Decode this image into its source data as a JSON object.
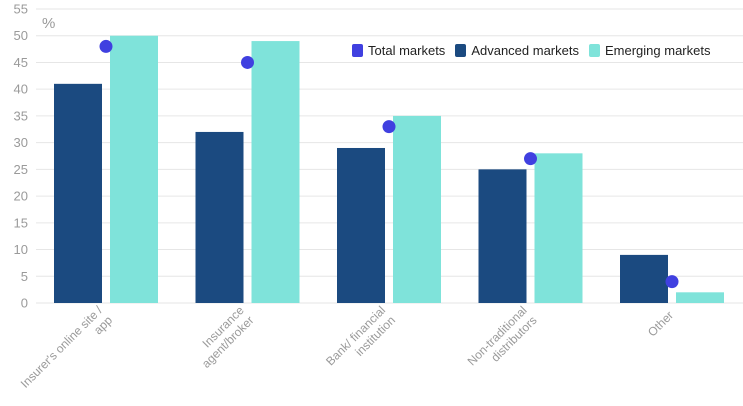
{
  "chart_data": {
    "type": "bar",
    "unit_label": "%",
    "categories": [
      [
        "Insurer's online site /",
        "app"
      ],
      [
        "Insurance",
        "agent/broker"
      ],
      [
        "Bank/ financial",
        "institution"
      ],
      [
        "Non-traditional",
        "distributors"
      ],
      [
        "Other"
      ]
    ],
    "series": [
      {
        "name": "Advanced markets",
        "type": "bar",
        "color": "#1b4a80",
        "values": [
          41,
          32,
          29,
          25,
          9
        ]
      },
      {
        "name": "Emerging markets",
        "type": "bar",
        "color": "#7fe3da",
        "values": [
          50,
          49,
          35,
          28,
          2
        ]
      },
      {
        "name": "Total markets",
        "type": "dot",
        "color": "#4040e0",
        "values": [
          48,
          45,
          33,
          27,
          4
        ]
      }
    ],
    "legend_order": [
      "Total markets",
      "Advanced markets",
      "Emerging markets"
    ],
    "legend_position": "top-right",
    "ylim": [
      0,
      55
    ],
    "yticks": [
      0,
      5,
      10,
      15,
      20,
      25,
      30,
      35,
      40,
      45,
      50,
      55
    ],
    "grid": true
  }
}
